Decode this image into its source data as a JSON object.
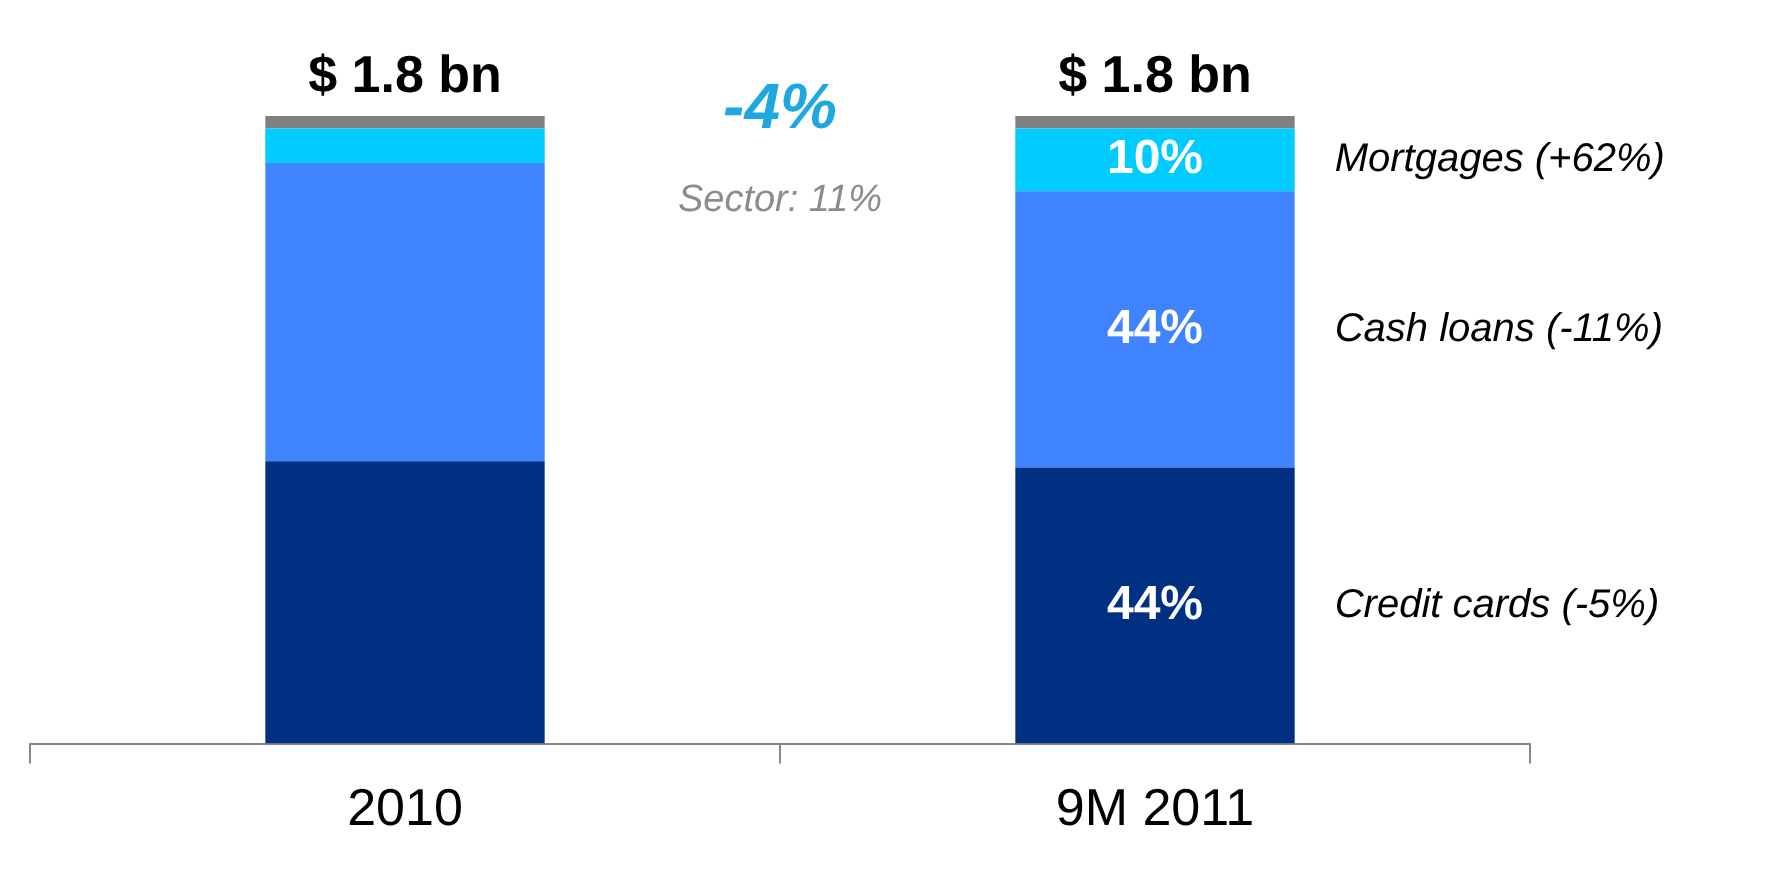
{
  "chart_data": {
    "type": "bar",
    "stacked": true,
    "categories": [
      "2010",
      "9M 2011"
    ],
    "series": [
      {
        "name": "Credit cards (-5%)",
        "color": "#003082",
        "values": [
          45,
          44
        ],
        "value_labels": [
          null,
          "44%"
        ]
      },
      {
        "name": "Cash loans (-11%)",
        "color": "#3f83ff",
        "values": [
          47.5,
          44
        ],
        "value_labels": [
          null,
          "44%"
        ]
      },
      {
        "name": "Mortgages (+62%)",
        "color": "#00ccff",
        "values": [
          5.5,
          10
        ],
        "value_labels": [
          null,
          "10%"
        ]
      },
      {
        "color": "#808080",
        "values": [
          2,
          2
        ]
      }
    ],
    "annotations": [
      {
        "text": "$ 1.8 bn",
        "x": "2010",
        "y": 100
      },
      {
        "text": "$ 1.8 bn",
        "x": "9M 2011",
        "y": 100
      },
      "-4%",
      "Sector: 11%"
    ]
  }
}
